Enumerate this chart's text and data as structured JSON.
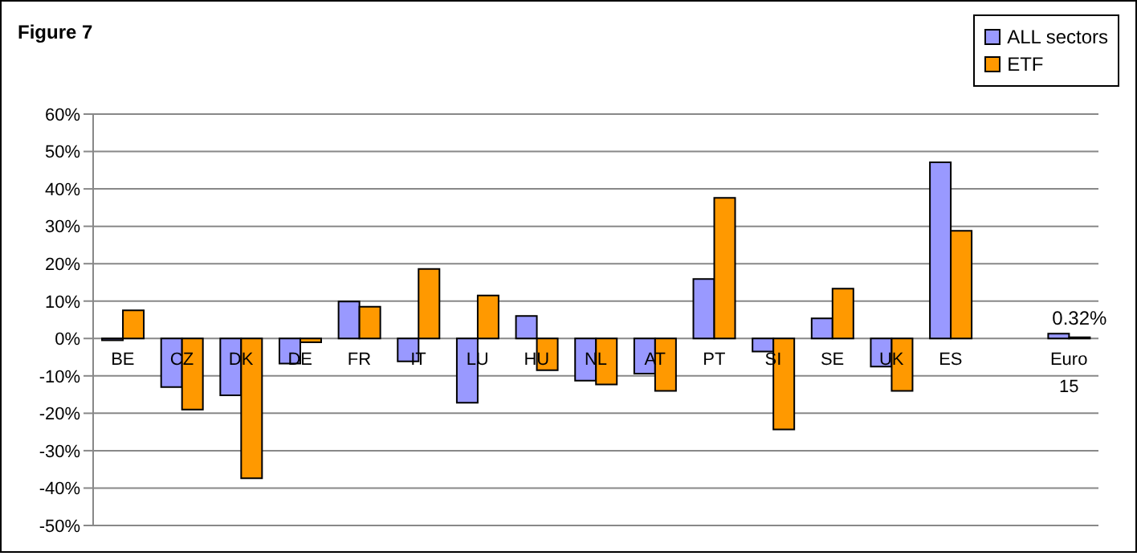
{
  "chart_data": {
    "type": "bar",
    "title": "Figure 7",
    "categories": [
      "BE",
      "CZ",
      "DK",
      "DE",
      "FR",
      "IT",
      "LU",
      "HU",
      "NL",
      "AT",
      "PT",
      "SI",
      "SE",
      "UK",
      "ES",
      null,
      "Euro 15"
    ],
    "series": [
      {
        "name": "ALL sectors",
        "color": "#9999ff",
        "values": [
          -0.5,
          -13,
          -15.2,
          -6.7,
          9.9,
          -6.1,
          -17.2,
          6,
          -11.3,
          -9.4,
          15.9,
          -3.5,
          5.4,
          -7.5,
          47.1,
          null,
          1.3
        ]
      },
      {
        "name": "ETF",
        "color": "#ff9900",
        "values": [
          7.5,
          -19,
          -37.4,
          -1,
          8.5,
          18.6,
          11.5,
          -8.5,
          -12.3,
          -14,
          37.6,
          -24.3,
          13.3,
          -14,
          28.8,
          null,
          0.32
        ],
        "value_labels": [
          null,
          null,
          null,
          null,
          null,
          null,
          null,
          null,
          null,
          null,
          null,
          null,
          null,
          null,
          null,
          null,
          "0.32%"
        ]
      }
    ],
    "ylim": [
      -50,
      60
    ],
    "yticks": [
      {
        "value": -50,
        "label": "-50%"
      },
      {
        "value": -40,
        "label": "-40%"
      },
      {
        "value": -30,
        "label": "-30%"
      },
      {
        "value": -20,
        "label": "-20%"
      },
      {
        "value": -10,
        "label": "-10%"
      },
      {
        "value": 0,
        "label": "0%"
      },
      {
        "value": 10,
        "label": "10%"
      },
      {
        "value": 20,
        "label": "20%"
      },
      {
        "value": 30,
        "label": "30%"
      },
      {
        "value": 40,
        "label": "40%"
      },
      {
        "value": 50,
        "label": "50%"
      },
      {
        "value": 60,
        "label": "60%"
      }
    ],
    "grid": "y",
    "legend": "top right"
  }
}
